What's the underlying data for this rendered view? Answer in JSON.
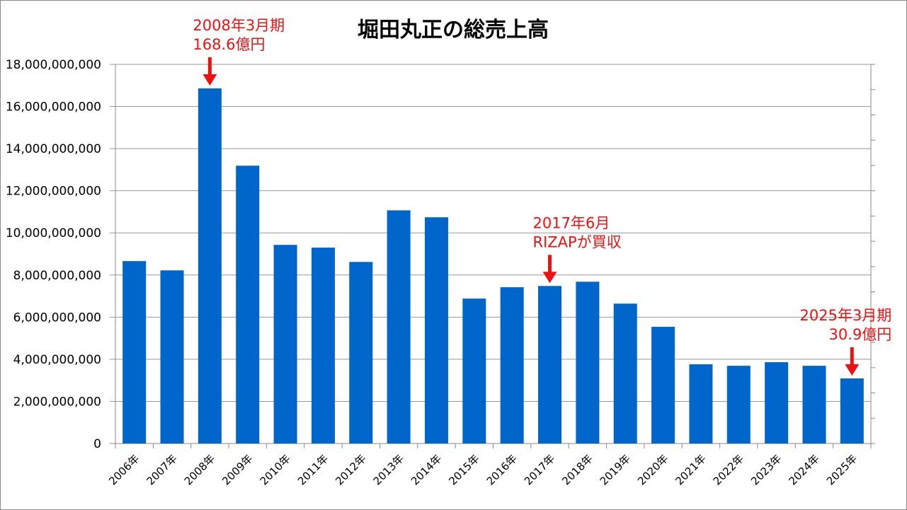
{
  "chart_data": {
    "type": "bar",
    "title": "堀田丸正の総売上高",
    "xlabel": "",
    "ylabel": "",
    "ylim": [
      0,
      18000000000
    ],
    "yticks": [
      0,
      2000000000,
      4000000000,
      6000000000,
      8000000000,
      10000000000,
      12000000000,
      14000000000,
      16000000000,
      18000000000
    ],
    "ytick_labels": [
      "0",
      "2,000,000,000",
      "4,000,000,000",
      "6,000,000,000",
      "8,000,000,000",
      "10,000,000,000",
      "12,000,000,000",
      "14,000,000,000",
      "16,000,000,000",
      "18,000,000,000"
    ],
    "grid": true,
    "legend": "none",
    "bar_color": "#0066cc",
    "annotation_color": "#ee1111",
    "categories": [
      "2006年",
      "2007年",
      "2008年",
      "2009年",
      "2010年",
      "2011年",
      "2012年",
      "2013年",
      "2014年",
      "2015年",
      "2016年",
      "2017年",
      "2018年",
      "2019年",
      "2020年",
      "2021年",
      "2022年",
      "2023年",
      "2024年",
      "2025年"
    ],
    "values": [
      8660000000,
      8220000000,
      16860000000,
      13190000000,
      9430000000,
      9300000000,
      8620000000,
      11070000000,
      10740000000,
      6880000000,
      7420000000,
      7480000000,
      7680000000,
      6640000000,
      5540000000,
      3760000000,
      3690000000,
      3860000000,
      3690000000,
      3090000000
    ],
    "annotations": [
      {
        "category": "2008年",
        "lines": [
          "2008年3月期",
          "168.6億円"
        ],
        "align": "left"
      },
      {
        "category": "2017年",
        "lines": [
          "2017年6月",
          "RIZAPが買収"
        ],
        "align": "left"
      },
      {
        "category": "2025年",
        "lines": [
          "2025年3月期",
          "30.9億円"
        ],
        "align": "right"
      }
    ]
  }
}
